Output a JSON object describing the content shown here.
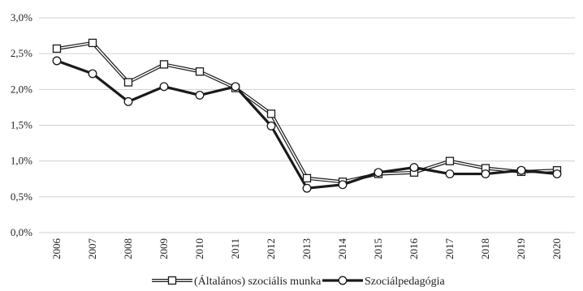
{
  "chart_data": {
    "type": "line",
    "title": "",
    "xlabel": "",
    "ylabel": "",
    "x": [
      "2006",
      "2007",
      "2008",
      "2009",
      "2010",
      "2011",
      "2012",
      "2013",
      "2014",
      "2015",
      "2016",
      "2017",
      "2018",
      "2019",
      "2020"
    ],
    "yticks": [
      "0,0%",
      "0,5%",
      "1,0%",
      "1,5%",
      "2,0%",
      "2,5%",
      "3,0%"
    ],
    "ylim": [
      0,
      3.0
    ],
    "grid": "horizontal",
    "legend_position": "bottom",
    "series": [
      {
        "name": "(Általános) szociális munka",
        "marker": "square",
        "style": "double-line",
        "values": [
          2.57,
          2.65,
          2.1,
          2.35,
          2.25,
          2.02,
          1.66,
          0.76,
          0.71,
          0.82,
          0.84,
          1.0,
          0.9,
          0.85,
          0.87
        ]
      },
      {
        "name": "Szociálpedagógia",
        "marker": "circle",
        "style": "bold-line",
        "values": [
          2.4,
          2.22,
          1.83,
          2.04,
          1.92,
          2.04,
          1.49,
          0.62,
          0.67,
          0.84,
          0.91,
          0.82,
          0.82,
          0.87,
          0.82
        ]
      }
    ],
    "colors": {
      "line": "#1a1a1a",
      "grid": "#d0d0d0",
      "marker_fill": "#ffffff"
    }
  }
}
